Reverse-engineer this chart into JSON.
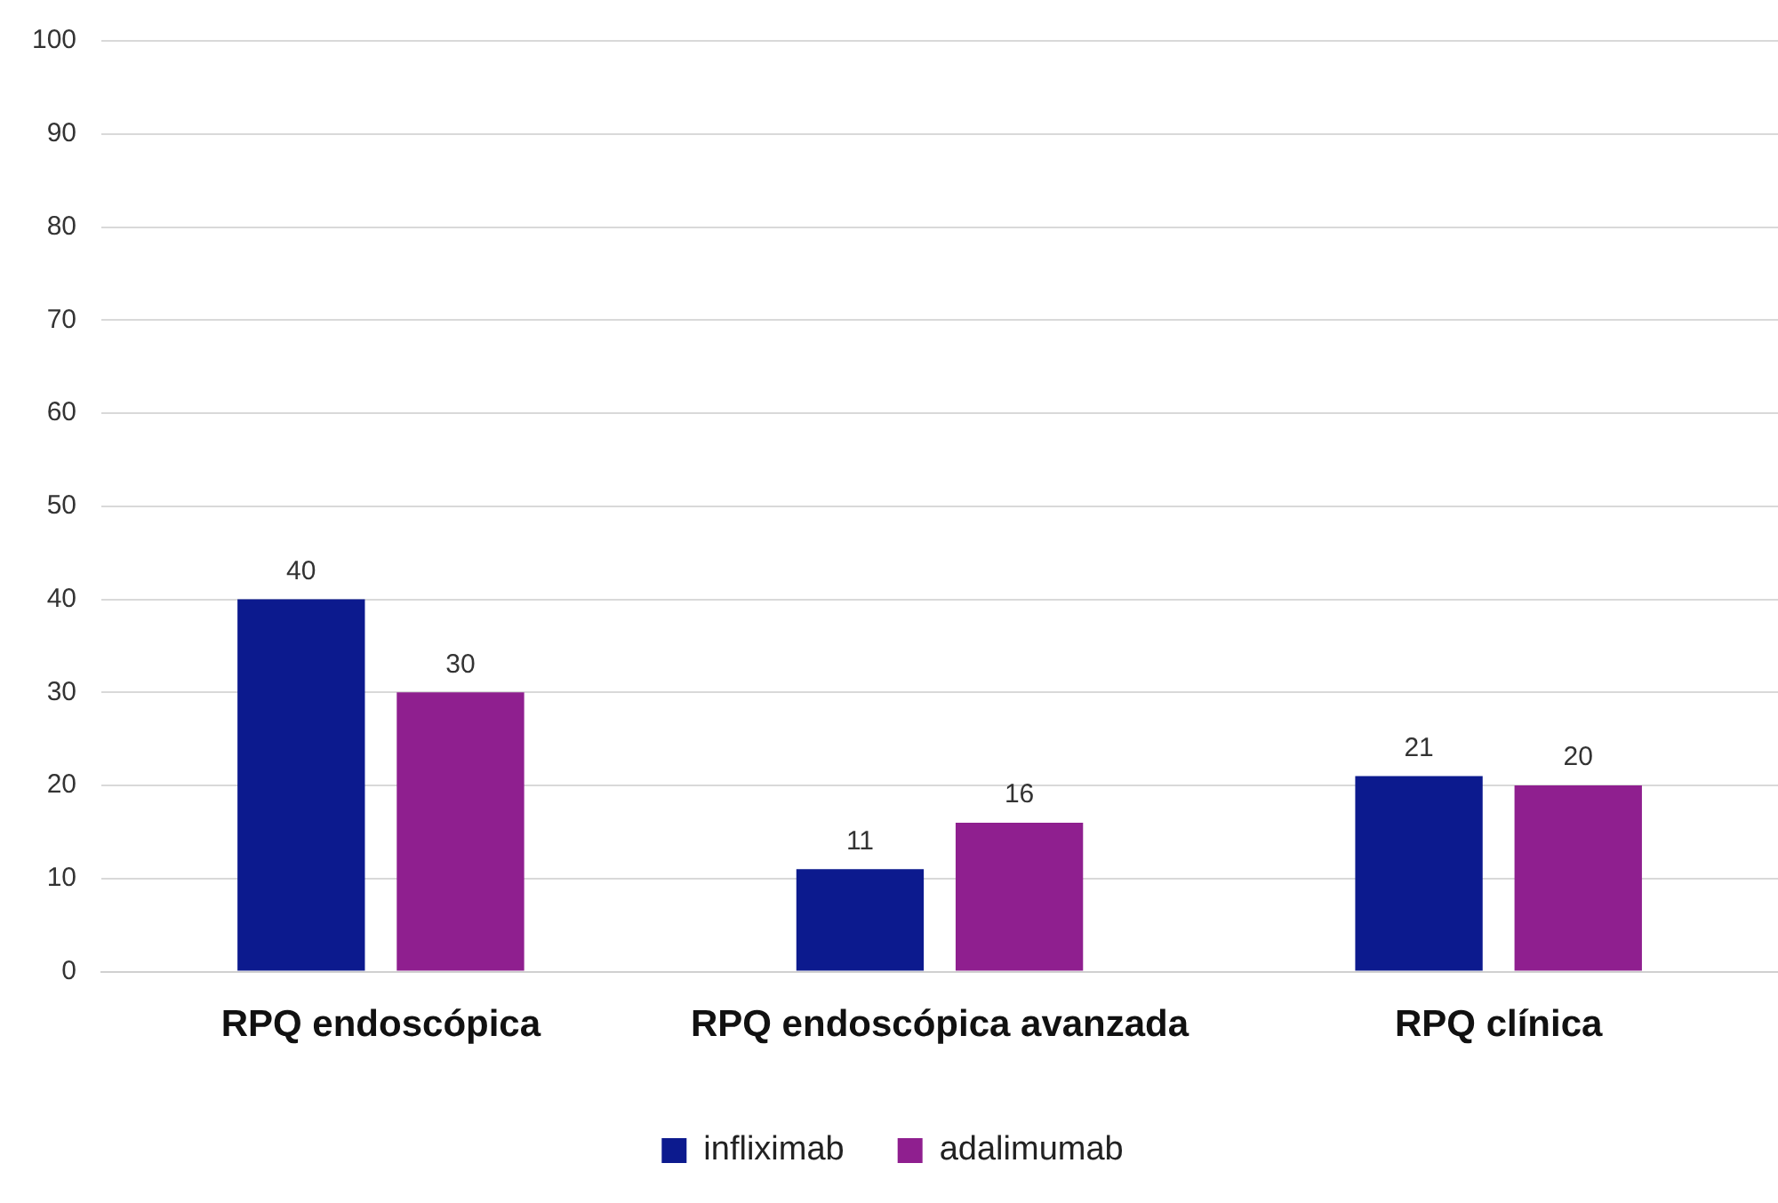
{
  "chart_data": {
    "type": "bar",
    "categories": [
      "RPQ endoscópica",
      "RPQ endoscópica avanzada",
      "RPQ clínica"
    ],
    "series": [
      {
        "name": "infliximab",
        "color": "#0c1a8e",
        "values": [
          40,
          11,
          21
        ]
      },
      {
        "name": "adalimumab",
        "color": "#8f1f8f",
        "values": [
          30,
          16,
          20
        ]
      }
    ],
    "ylim": [
      0,
      100
    ],
    "yticks": [
      0,
      10,
      20,
      30,
      40,
      50,
      60,
      70,
      80,
      90,
      100
    ],
    "grid": "y",
    "legend": "bottom",
    "data_labels": true
  }
}
